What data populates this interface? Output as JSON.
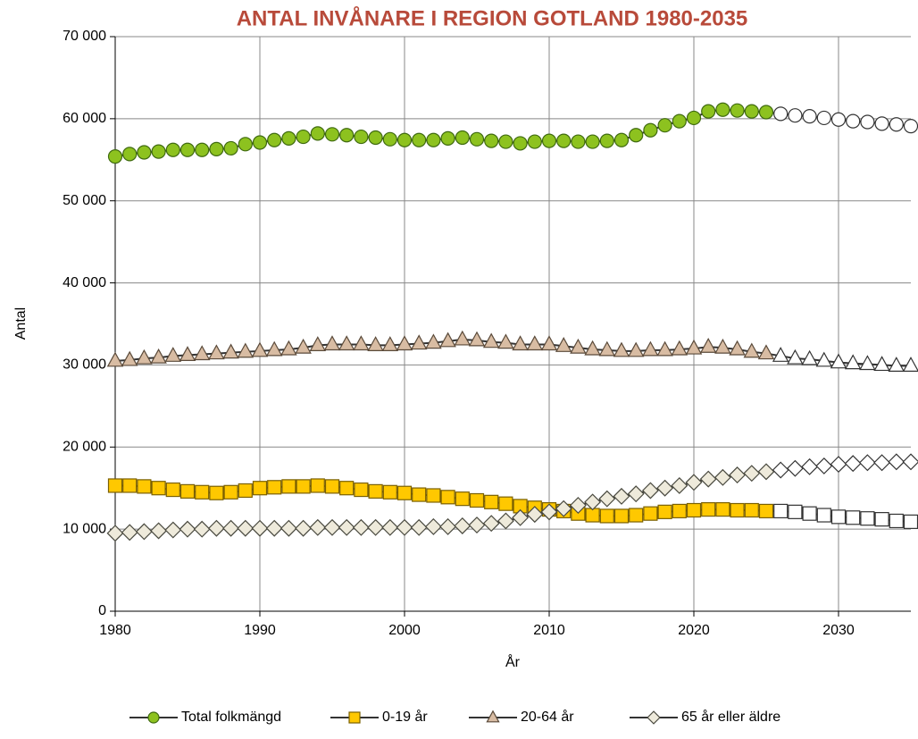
{
  "chart_data": {
    "type": "line",
    "title": "ANTAL INVÅNARE I REGION GOTLAND 1980-2035",
    "x_label": "År",
    "y_label": "Antal",
    "x": [
      1980,
      1981,
      1982,
      1983,
      1984,
      1985,
      1986,
      1987,
      1988,
      1989,
      1990,
      1991,
      1992,
      1993,
      1994,
      1995,
      1996,
      1997,
      1998,
      1999,
      2000,
      2001,
      2002,
      2003,
      2004,
      2005,
      2006,
      2007,
      2008,
      2009,
      2010,
      2011,
      2012,
      2013,
      2014,
      2015,
      2016,
      2017,
      2018,
      2019,
      2020,
      2021,
      2022,
      2023,
      2024,
      2025,
      2026,
      2027,
      2028,
      2029,
      2030,
      2031,
      2032,
      2033,
      2034,
      2035
    ],
    "xlim": [
      1980,
      2035
    ],
    "xticks": [
      1980,
      1990,
      2000,
      2010,
      2020,
      2030
    ],
    "ylim": [
      0,
      70000
    ],
    "yticks": [
      0,
      {
        "value": 10000,
        "label": "10 000"
      },
      {
        "value": 20000,
        "label": "20 000"
      },
      {
        "value": 30000,
        "label": "30 000"
      },
      {
        "value": 40000,
        "label": "40 000"
      },
      {
        "value": 50000,
        "label": "50 000"
      },
      {
        "value": 60000,
        "label": "60 000"
      },
      {
        "value": 70000,
        "label": "70 000"
      }
    ],
    "grid": true,
    "legend": "bottom",
    "line_color": "#333333",
    "hollow_from_x": 2026,
    "series": [
      {
        "name": "Total folkmängd",
        "marker": "circle",
        "color": "#8dc21f",
        "edge": "#3f6a10",
        "values": [
          55400,
          55700,
          55900,
          56000,
          56200,
          56200,
          56200,
          56300,
          56400,
          56900,
          57100,
          57400,
          57600,
          57800,
          58200,
          58100,
          58000,
          57800,
          57700,
          57500,
          57400,
          57400,
          57400,
          57600,
          57700,
          57500,
          57300,
          57200,
          57000,
          57200,
          57300,
          57300,
          57200,
          57200,
          57300,
          57400,
          58000,
          58600,
          59200,
          59700,
          60100,
          60900,
          61100,
          61000,
          60900,
          60800,
          60600,
          60400,
          60300,
          60100,
          59900,
          59700,
          59600,
          59400,
          59300,
          59100
        ]
      },
      {
        "name": "0-19 år",
        "marker": "square",
        "color": "#ffc800",
        "edge": "#7a6000",
        "values": [
          15300,
          15300,
          15200,
          15000,
          14800,
          14600,
          14500,
          14400,
          14500,
          14700,
          15000,
          15100,
          15200,
          15200,
          15300,
          15200,
          15000,
          14800,
          14600,
          14500,
          14400,
          14200,
          14100,
          13900,
          13700,
          13500,
          13300,
          13100,
          12800,
          12600,
          12400,
          12200,
          11900,
          11700,
          11600,
          11600,
          11700,
          11900,
          12100,
          12200,
          12300,
          12400,
          12400,
          12300,
          12300,
          12200,
          12200,
          12100,
          11900,
          11700,
          11500,
          11400,
          11300,
          11200,
          11000,
          10900
        ]
      },
      {
        "name": "20-64 år",
        "marker": "triangle",
        "color": "#d8bca3",
        "edge": "#5a4a3a",
        "values": [
          30500,
          30600,
          30800,
          30900,
          31100,
          31200,
          31300,
          31400,
          31500,
          31600,
          31700,
          31800,
          31900,
          32100,
          32400,
          32500,
          32500,
          32500,
          32400,
          32400,
          32500,
          32600,
          32700,
          32900,
          33100,
          33000,
          32800,
          32700,
          32500,
          32500,
          32500,
          32300,
          32100,
          31900,
          31800,
          31700,
          31700,
          31800,
          31800,
          31900,
          32000,
          32200,
          32100,
          31900,
          31600,
          31400,
          31100,
          30800,
          30700,
          30500,
          30300,
          30200,
          30100,
          30000,
          29900,
          29900
        ]
      },
      {
        "name": "65 år eller äldre",
        "marker": "diamond",
        "color": "#eeeadb",
        "edge": "#4a4a40",
        "values": [
          9500,
          9600,
          9700,
          9800,
          9900,
          10000,
          10000,
          10100,
          10100,
          10100,
          10100,
          10100,
          10100,
          10100,
          10200,
          10200,
          10200,
          10200,
          10200,
          10200,
          10200,
          10200,
          10300,
          10300,
          10400,
          10500,
          10700,
          11000,
          11400,
          11800,
          12100,
          12500,
          12900,
          13300,
          13700,
          14000,
          14300,
          14700,
          15000,
          15300,
          15700,
          16100,
          16300,
          16600,
          16800,
          17000,
          17200,
          17400,
          17600,
          17700,
          17900,
          18000,
          18100,
          18100,
          18200,
          18200
        ]
      }
    ]
  }
}
